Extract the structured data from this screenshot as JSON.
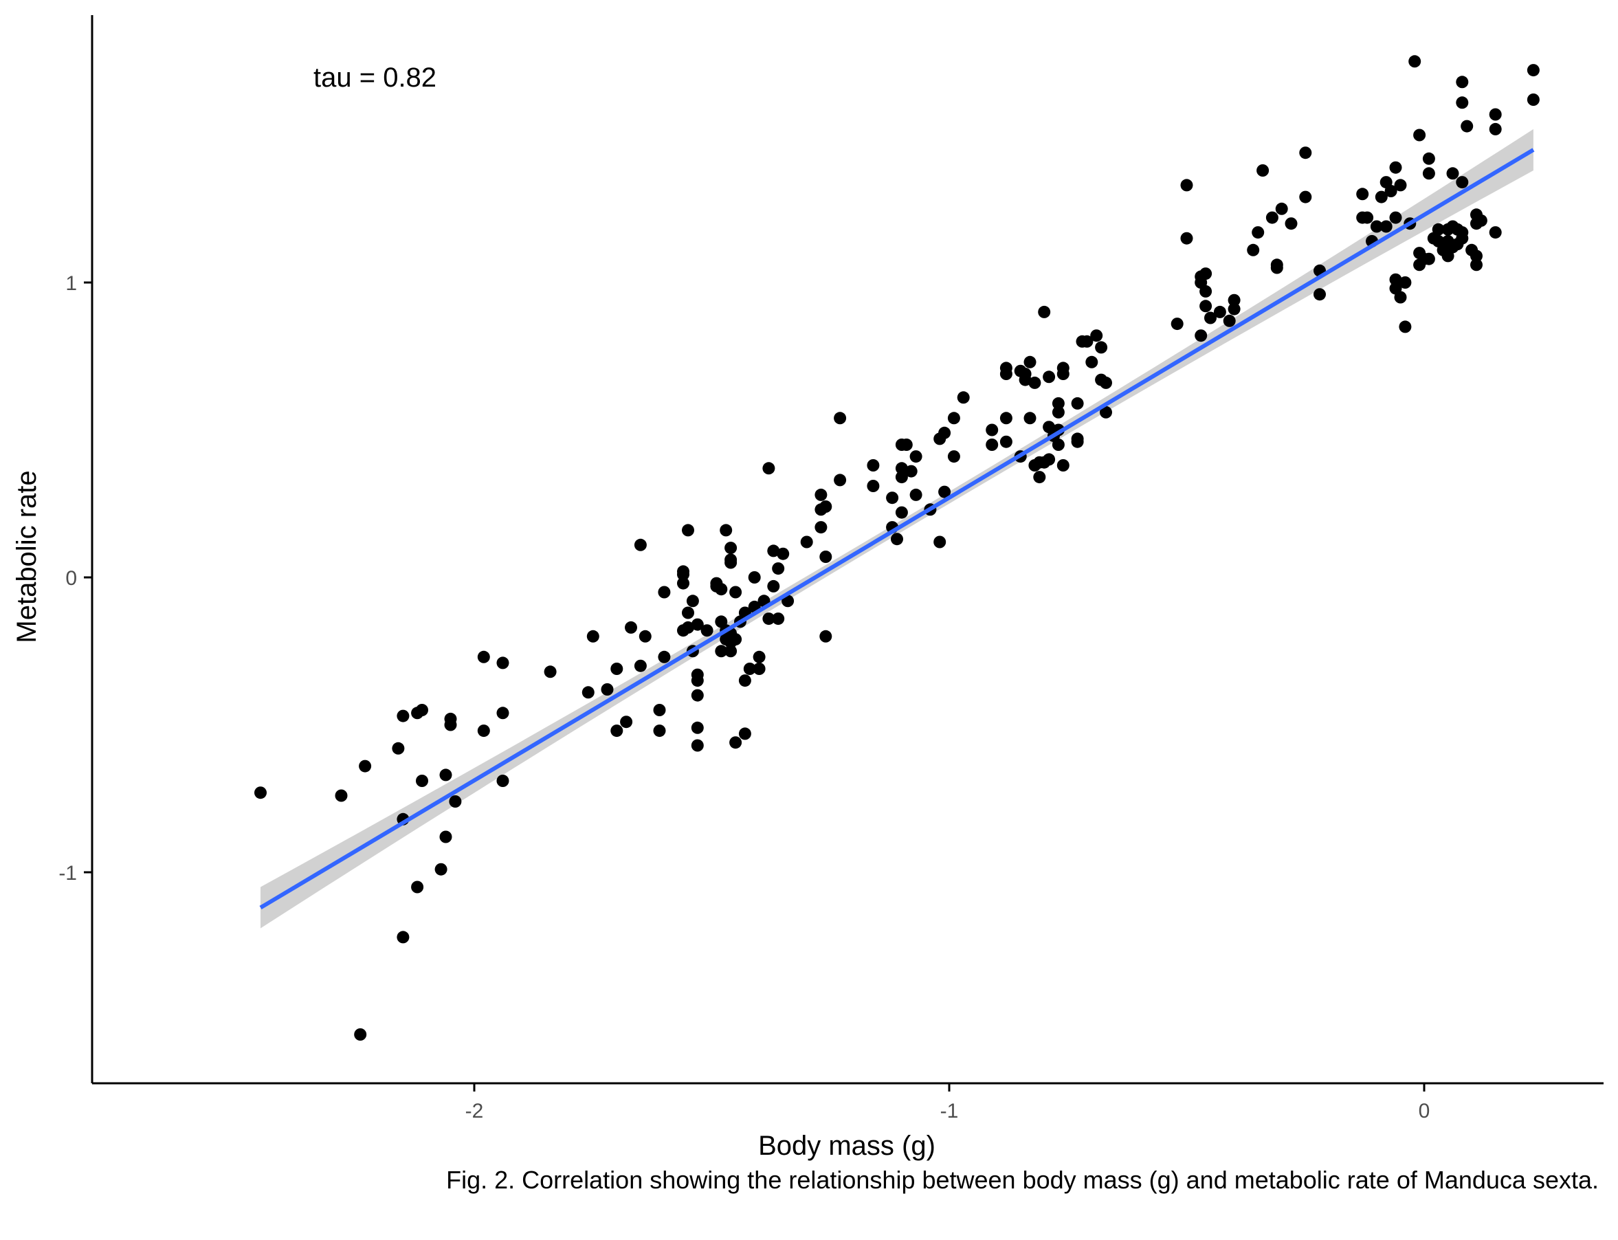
{
  "caption": "Fig. 2. Correlation showing the relationship between body mass (g) and metabolic rate of Manduca sexta.",
  "colors": {
    "points": "#000000",
    "fit_line": "#3366FF",
    "confidence_band": "#cccccc",
    "axis": "#000000",
    "tick_label": "#4d4d4d"
  },
  "chart_data": {
    "type": "scatter",
    "title": "",
    "xlabel": "Body mass (g)",
    "ylabel": "Metabolic rate",
    "annotation": "tau = 0.82",
    "xlim": [
      -2.64,
      0.37
    ],
    "ylim": [
      -1.7,
      1.9
    ],
    "xticks": [
      -2,
      -1,
      0
    ],
    "xtick_labels": [
      "-2",
      "-1",
      "0"
    ],
    "yticks": [
      -1,
      0,
      1
    ],
    "ytick_labels": [
      "-1",
      "0",
      "1"
    ],
    "grid": false,
    "legend": "none",
    "fit": {
      "method": "linear",
      "x": [
        -2.45,
        0.23
      ],
      "y": [
        -1.12,
        1.45
      ],
      "se_band_halfwidth_ends": 0.07,
      "se_band_halfwidth_center": 0.02
    },
    "points": [
      {
        "x": -2.45,
        "y": -0.73
      },
      {
        "x": -2.24,
        "y": -1.55
      },
      {
        "x": -2.28,
        "y": -0.74
      },
      {
        "x": -2.23,
        "y": -0.64
      },
      {
        "x": -2.16,
        "y": -0.58
      },
      {
        "x": -2.15,
        "y": -0.47
      },
      {
        "x": -2.15,
        "y": -0.82
      },
      {
        "x": -2.15,
        "y": -1.22
      },
      {
        "x": -2.12,
        "y": -0.46
      },
      {
        "x": -2.11,
        "y": -0.45
      },
      {
        "x": -2.12,
        "y": -1.05
      },
      {
        "x": -2.11,
        "y": -0.69
      },
      {
        "x": -2.07,
        "y": -0.99
      },
      {
        "x": -2.06,
        "y": -0.88
      },
      {
        "x": -2.06,
        "y": -0.67
      },
      {
        "x": -2.05,
        "y": -0.48
      },
      {
        "x": -2.05,
        "y": -0.5
      },
      {
        "x": -2.04,
        "y": -0.76
      },
      {
        "x": -1.98,
        "y": -0.52
      },
      {
        "x": -1.98,
        "y": -0.27
      },
      {
        "x": -1.94,
        "y": -0.29
      },
      {
        "x": -1.94,
        "y": -0.46
      },
      {
        "x": -1.94,
        "y": -0.69
      },
      {
        "x": -1.84,
        "y": -0.32
      },
      {
        "x": -1.76,
        "y": -0.39
      },
      {
        "x": -1.75,
        "y": -0.2
      },
      {
        "x": -1.72,
        "y": -0.38
      },
      {
        "x": -1.7,
        "y": -0.31
      },
      {
        "x": -1.7,
        "y": -0.52
      },
      {
        "x": -1.68,
        "y": -0.49
      },
      {
        "x": -1.67,
        "y": -0.17
      },
      {
        "x": -1.65,
        "y": -0.3
      },
      {
        "x": -1.65,
        "y": 0.11
      },
      {
        "x": -1.64,
        "y": -0.2
      },
      {
        "x": -1.61,
        "y": -0.45
      },
      {
        "x": -1.61,
        "y": -0.52
      },
      {
        "x": -1.6,
        "y": -0.27
      },
      {
        "x": -1.6,
        "y": -0.05
      },
      {
        "x": -1.56,
        "y": -0.18
      },
      {
        "x": -1.56,
        "y": 0.01
      },
      {
        "x": -1.56,
        "y": 0.02
      },
      {
        "x": -1.56,
        "y": -0.02
      },
      {
        "x": -1.55,
        "y": -0.17
      },
      {
        "x": -1.55,
        "y": -0.12
      },
      {
        "x": -1.55,
        "y": 0.16
      },
      {
        "x": -1.54,
        "y": -0.25
      },
      {
        "x": -1.54,
        "y": -0.08
      },
      {
        "x": -1.53,
        "y": -0.16
      },
      {
        "x": -1.53,
        "y": -0.33
      },
      {
        "x": -1.53,
        "y": -0.35
      },
      {
        "x": -1.53,
        "y": -0.4
      },
      {
        "x": -1.53,
        "y": -0.51
      },
      {
        "x": -1.53,
        "y": -0.57
      },
      {
        "x": -1.51,
        "y": -0.18
      },
      {
        "x": -1.49,
        "y": -0.02
      },
      {
        "x": -1.49,
        "y": -0.03
      },
      {
        "x": -1.48,
        "y": -0.25
      },
      {
        "x": -1.48,
        "y": -0.15
      },
      {
        "x": -1.48,
        "y": -0.04
      },
      {
        "x": -1.47,
        "y": -0.21
      },
      {
        "x": -1.47,
        "y": -0.18
      },
      {
        "x": -1.47,
        "y": 0.16
      },
      {
        "x": -1.46,
        "y": -0.19
      },
      {
        "x": -1.46,
        "y": -0.22
      },
      {
        "x": -1.46,
        "y": -0.25
      },
      {
        "x": -1.46,
        "y": 0.1
      },
      {
        "x": -1.46,
        "y": 0.06
      },
      {
        "x": -1.46,
        "y": 0.05
      },
      {
        "x": -1.45,
        "y": -0.05
      },
      {
        "x": -1.45,
        "y": -0.21
      },
      {
        "x": -1.45,
        "y": -0.56
      },
      {
        "x": -1.44,
        "y": -0.15
      },
      {
        "x": -1.43,
        "y": -0.12
      },
      {
        "x": -1.43,
        "y": -0.53
      },
      {
        "x": -1.43,
        "y": -0.35
      },
      {
        "x": -1.42,
        "y": -0.31
      },
      {
        "x": -1.41,
        "y": -0.1
      },
      {
        "x": -1.41,
        "y": 0.0
      },
      {
        "x": -1.4,
        "y": -0.27
      },
      {
        "x": -1.4,
        "y": -0.31
      },
      {
        "x": -1.39,
        "y": -0.08
      },
      {
        "x": -1.38,
        "y": -0.14
      },
      {
        "x": -1.38,
        "y": 0.37
      },
      {
        "x": -1.37,
        "y": -0.03
      },
      {
        "x": -1.37,
        "y": 0.09
      },
      {
        "x": -1.36,
        "y": 0.03
      },
      {
        "x": -1.36,
        "y": -0.14
      },
      {
        "x": -1.35,
        "y": 0.08
      },
      {
        "x": -1.34,
        "y": -0.08
      },
      {
        "x": -1.3,
        "y": 0.12
      },
      {
        "x": -1.27,
        "y": 0.28
      },
      {
        "x": -1.27,
        "y": 0.23
      },
      {
        "x": -1.27,
        "y": 0.17
      },
      {
        "x": -1.26,
        "y": 0.07
      },
      {
        "x": -1.26,
        "y": 0.24
      },
      {
        "x": -1.26,
        "y": -0.2
      },
      {
        "x": -1.23,
        "y": 0.54
      },
      {
        "x": -1.23,
        "y": 0.33
      },
      {
        "x": -1.16,
        "y": 0.38
      },
      {
        "x": -1.16,
        "y": 0.31
      },
      {
        "x": -1.12,
        "y": 0.27
      },
      {
        "x": -1.12,
        "y": 0.17
      },
      {
        "x": -1.11,
        "y": 0.13
      },
      {
        "x": -1.1,
        "y": 0.22
      },
      {
        "x": -1.1,
        "y": 0.34
      },
      {
        "x": -1.1,
        "y": 0.45
      },
      {
        "x": -1.1,
        "y": 0.37
      },
      {
        "x": -1.09,
        "y": 0.45
      },
      {
        "x": -1.08,
        "y": 0.36
      },
      {
        "x": -1.07,
        "y": 0.41
      },
      {
        "x": -1.07,
        "y": 0.28
      },
      {
        "x": -1.04,
        "y": 0.23
      },
      {
        "x": -1.02,
        "y": 0.12
      },
      {
        "x": -1.02,
        "y": 0.47
      },
      {
        "x": -1.01,
        "y": 0.49
      },
      {
        "x": -1.01,
        "y": 0.29
      },
      {
        "x": -0.99,
        "y": 0.41
      },
      {
        "x": -0.99,
        "y": 0.54
      },
      {
        "x": -0.97,
        "y": 0.61
      },
      {
        "x": -0.91,
        "y": 0.45
      },
      {
        "x": -0.91,
        "y": 0.5
      },
      {
        "x": -0.88,
        "y": 0.54
      },
      {
        "x": -0.88,
        "y": 0.46
      },
      {
        "x": -0.88,
        "y": 0.69
      },
      {
        "x": -0.88,
        "y": 0.71
      },
      {
        "x": -0.85,
        "y": 0.7
      },
      {
        "x": -0.85,
        "y": 0.41
      },
      {
        "x": -0.84,
        "y": 0.67
      },
      {
        "x": -0.84,
        "y": 0.69
      },
      {
        "x": -0.83,
        "y": 0.54
      },
      {
        "x": -0.83,
        "y": 0.73
      },
      {
        "x": -0.82,
        "y": 0.66
      },
      {
        "x": -0.82,
        "y": 0.38
      },
      {
        "x": -0.81,
        "y": 0.34
      },
      {
        "x": -0.81,
        "y": 0.39
      },
      {
        "x": -0.8,
        "y": 0.39
      },
      {
        "x": -0.8,
        "y": 0.9
      },
      {
        "x": -0.79,
        "y": 0.4
      },
      {
        "x": -0.79,
        "y": 0.68
      },
      {
        "x": -0.79,
        "y": 0.51
      },
      {
        "x": -0.78,
        "y": 0.48
      },
      {
        "x": -0.77,
        "y": 0.45
      },
      {
        "x": -0.77,
        "y": 0.5
      },
      {
        "x": -0.77,
        "y": 0.59
      },
      {
        "x": -0.77,
        "y": 0.56
      },
      {
        "x": -0.76,
        "y": 0.38
      },
      {
        "x": -0.76,
        "y": 0.69
      },
      {
        "x": -0.76,
        "y": 0.71
      },
      {
        "x": -0.73,
        "y": 0.46
      },
      {
        "x": -0.73,
        "y": 0.47
      },
      {
        "x": -0.73,
        "y": 0.59
      },
      {
        "x": -0.72,
        "y": 0.8
      },
      {
        "x": -0.71,
        "y": 0.8
      },
      {
        "x": -0.7,
        "y": 0.73
      },
      {
        "x": -0.69,
        "y": 0.82
      },
      {
        "x": -0.68,
        "y": 0.67
      },
      {
        "x": -0.68,
        "y": 0.78
      },
      {
        "x": -0.67,
        "y": 0.56
      },
      {
        "x": -0.67,
        "y": 0.66
      },
      {
        "x": -0.52,
        "y": 0.86
      },
      {
        "x": -0.5,
        "y": 1.33
      },
      {
        "x": -0.5,
        "y": 1.15
      },
      {
        "x": -0.47,
        "y": 1.02
      },
      {
        "x": -0.47,
        "y": 1.0
      },
      {
        "x": -0.47,
        "y": 0.82
      },
      {
        "x": -0.46,
        "y": 1.03
      },
      {
        "x": -0.46,
        "y": 0.97
      },
      {
        "x": -0.46,
        "y": 0.92
      },
      {
        "x": -0.45,
        "y": 0.88
      },
      {
        "x": -0.43,
        "y": 0.9
      },
      {
        "x": -0.41,
        "y": 0.87
      },
      {
        "x": -0.4,
        "y": 0.91
      },
      {
        "x": -0.4,
        "y": 0.94
      },
      {
        "x": -0.36,
        "y": 1.11
      },
      {
        "x": -0.35,
        "y": 1.17
      },
      {
        "x": -0.34,
        "y": 1.38
      },
      {
        "x": -0.32,
        "y": 1.22
      },
      {
        "x": -0.31,
        "y": 1.06
      },
      {
        "x": -0.31,
        "y": 1.05
      },
      {
        "x": -0.3,
        "y": 1.25
      },
      {
        "x": -0.28,
        "y": 1.2
      },
      {
        "x": -0.25,
        "y": 1.29
      },
      {
        "x": -0.25,
        "y": 1.44
      },
      {
        "x": -0.22,
        "y": 1.04
      },
      {
        "x": -0.22,
        "y": 0.96
      },
      {
        "x": -0.13,
        "y": 1.3
      },
      {
        "x": -0.13,
        "y": 1.22
      },
      {
        "x": -0.12,
        "y": 1.22
      },
      {
        "x": -0.11,
        "y": 1.14
      },
      {
        "x": -0.1,
        "y": 1.19
      },
      {
        "x": -0.09,
        "y": 1.29
      },
      {
        "x": -0.08,
        "y": 1.34
      },
      {
        "x": -0.08,
        "y": 1.19
      },
      {
        "x": -0.07,
        "y": 1.31
      },
      {
        "x": -0.06,
        "y": 1.22
      },
      {
        "x": -0.06,
        "y": 1.01
      },
      {
        "x": -0.06,
        "y": 0.98
      },
      {
        "x": -0.06,
        "y": 1.39
      },
      {
        "x": -0.05,
        "y": 1.33
      },
      {
        "x": -0.05,
        "y": 0.95
      },
      {
        "x": -0.04,
        "y": 0.85
      },
      {
        "x": -0.04,
        "y": 1.0
      },
      {
        "x": -0.03,
        "y": 1.2
      },
      {
        "x": -0.02,
        "y": 1.75
      },
      {
        "x": -0.01,
        "y": 1.5
      },
      {
        "x": -0.01,
        "y": 1.06
      },
      {
        "x": -0.01,
        "y": 1.1
      },
      {
        "x": 0.0,
        "y": 1.08
      },
      {
        "x": 0.01,
        "y": 1.08
      },
      {
        "x": 0.01,
        "y": 1.37
      },
      {
        "x": 0.01,
        "y": 1.42
      },
      {
        "x": 0.02,
        "y": 1.15
      },
      {
        "x": 0.03,
        "y": 1.18
      },
      {
        "x": 0.03,
        "y": 1.14
      },
      {
        "x": 0.04,
        "y": 1.11
      },
      {
        "x": 0.05,
        "y": 1.14
      },
      {
        "x": 0.05,
        "y": 1.18
      },
      {
        "x": 0.05,
        "y": 1.09
      },
      {
        "x": 0.06,
        "y": 1.12
      },
      {
        "x": 0.06,
        "y": 1.37
      },
      {
        "x": 0.06,
        "y": 1.19
      },
      {
        "x": 0.07,
        "y": 1.13
      },
      {
        "x": 0.07,
        "y": 1.18
      },
      {
        "x": 0.08,
        "y": 1.17
      },
      {
        "x": 0.08,
        "y": 1.15
      },
      {
        "x": 0.08,
        "y": 1.34
      },
      {
        "x": 0.08,
        "y": 1.61
      },
      {
        "x": 0.08,
        "y": 1.68
      },
      {
        "x": 0.09,
        "y": 1.53
      },
      {
        "x": 0.1,
        "y": 1.11
      },
      {
        "x": 0.11,
        "y": 1.09
      },
      {
        "x": 0.11,
        "y": 1.06
      },
      {
        "x": 0.11,
        "y": 1.2
      },
      {
        "x": 0.11,
        "y": 1.23
      },
      {
        "x": 0.12,
        "y": 1.21
      },
      {
        "x": 0.15,
        "y": 1.17
      },
      {
        "x": 0.15,
        "y": 1.52
      },
      {
        "x": 0.15,
        "y": 1.57
      },
      {
        "x": 0.23,
        "y": 1.62
      },
      {
        "x": 0.23,
        "y": 1.72
      }
    ]
  }
}
